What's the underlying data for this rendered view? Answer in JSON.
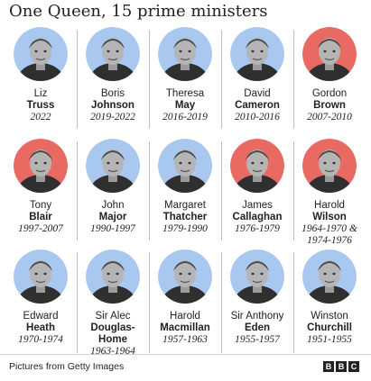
{
  "title": "One Queen, 15 prime ministers",
  "colors": {
    "blue_tint": "#a8c8ef",
    "red_tint": "#e96a62",
    "gray_tint": "#bdbdbd"
  },
  "rows": [
    [
      {
        "first": "Liz",
        "last": "Truss",
        "years": "2022",
        "tint": "blue"
      },
      {
        "first": "Boris",
        "last": "Johnson",
        "years": "2019-2022",
        "tint": "blue"
      },
      {
        "first": "Theresa",
        "last": "May",
        "years": "2016-2019",
        "tint": "blue"
      },
      {
        "first": "David",
        "last": "Cameron",
        "years": "2010-2016",
        "tint": "blue"
      },
      {
        "first": "Gordon",
        "last": "Brown",
        "years": "2007-2010",
        "tint": "red"
      }
    ],
    [
      {
        "first": "Tony",
        "last": "Blair",
        "years": "1997-2007",
        "tint": "red"
      },
      {
        "first": "John",
        "last": "Major",
        "years": "1990-1997",
        "tint": "blue"
      },
      {
        "first": "Margaret",
        "last": "Thatcher",
        "years": "1979-1990",
        "tint": "blue"
      },
      {
        "first": "James",
        "last": "Callaghan",
        "years": "1976-1979",
        "tint": "red"
      },
      {
        "first": "Harold",
        "last": "Wilson",
        "years": "1964-1970 & 1974-1976",
        "tint": "red"
      }
    ],
    [
      {
        "first": "Edward",
        "last": "Heath",
        "years": "1970-1974",
        "tint": "blue"
      },
      {
        "first": "Sir Alec",
        "last": "Douglas-Home",
        "years": "1963-1964",
        "tint": "blue"
      },
      {
        "first": "Harold",
        "last": "Macmillan",
        "years": "1957-1963",
        "tint": "blue"
      },
      {
        "first": "Sir Anthony",
        "last": "Eden",
        "years": "1955-1957",
        "tint": "blue"
      },
      {
        "first": "Winston",
        "last": "Churchill",
        "years": "1951-1955",
        "tint": "blue"
      }
    ]
  ],
  "footer": {
    "credit": "Pictures from Getty Images",
    "logo_letters": [
      "B",
      "B",
      "C"
    ]
  }
}
